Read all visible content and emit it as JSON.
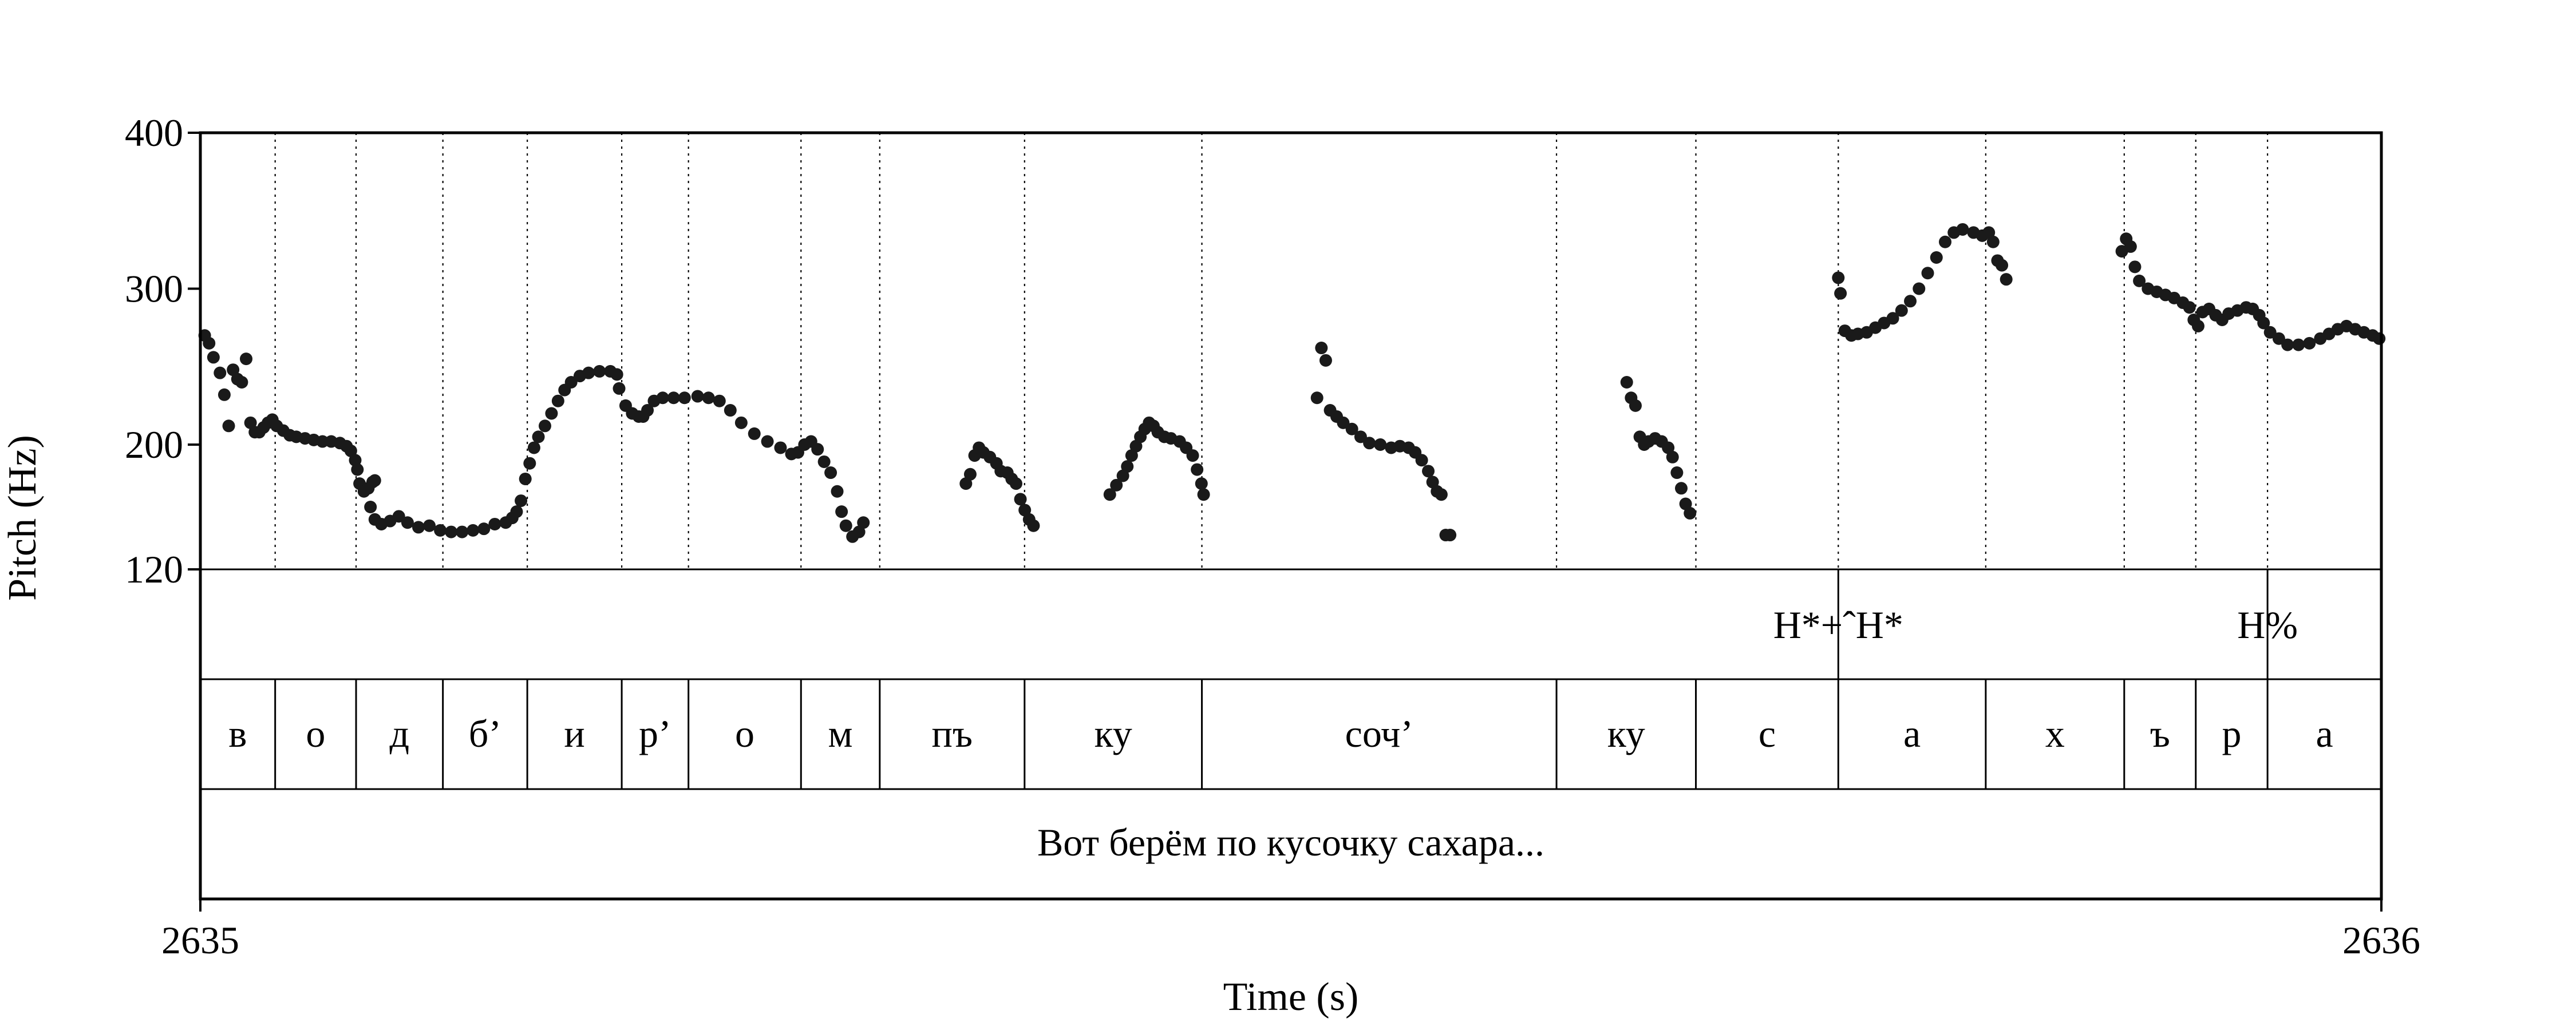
{
  "chart_data": {
    "type": "scatter",
    "xlabel": "Time (s)",
    "ylabel": "Pitch (Hz)",
    "xlim": [
      2635,
      2636
    ],
    "ylim": [
      120,
      400
    ],
    "x_ticks": [
      "2635",
      "2636"
    ],
    "y_ticks": [
      {
        "value": 400,
        "label": "400"
      },
      {
        "value": 300,
        "label": "300"
      },
      {
        "value": 200,
        "label": "200"
      },
      {
        "value": 120,
        "label": "120"
      }
    ],
    "marker_color": "#1a1a1a",
    "boundaries": [
      2635.0343,
      2635.0714,
      2635.1112,
      2635.1499,
      2635.1932,
      2635.2238,
      2635.2754,
      2635.3115,
      2635.3779,
      2635.4592,
      2635.6218,
      2635.6857,
      2635.751,
      2635.8186,
      2635.8821,
      2635.9149,
      2635.9478
    ],
    "tones": [
      {
        "label": "H*+ˆH*",
        "time": 2635.751
      },
      {
        "label": "H%",
        "time": 2635.9478
      }
    ],
    "segments": [
      {
        "label": "в",
        "start": 2635.0,
        "end": 2635.0343
      },
      {
        "label": "о",
        "start": 2635.0343,
        "end": 2635.0714
      },
      {
        "label": "д",
        "start": 2635.0714,
        "end": 2635.1112
      },
      {
        "label": "б’",
        "start": 2635.1112,
        "end": 2635.1499
      },
      {
        "label": "и",
        "start": 2635.1499,
        "end": 2635.1932
      },
      {
        "label": "р’",
        "start": 2635.1932,
        "end": 2635.2238
      },
      {
        "label": "о",
        "start": 2635.2238,
        "end": 2635.2754
      },
      {
        "label": "м",
        "start": 2635.2754,
        "end": 2635.3115
      },
      {
        "label": "пъ",
        "start": 2635.3115,
        "end": 2635.3779
      },
      {
        "label": "ку",
        "start": 2635.3779,
        "end": 2635.4592
      },
      {
        "label": "соч’",
        "start": 2635.4592,
        "end": 2635.6218
      },
      {
        "label": "ку",
        "start": 2635.6218,
        "end": 2635.6857
      },
      {
        "label": "с",
        "start": 2635.6857,
        "end": 2635.751
      },
      {
        "label": "а",
        "start": 2635.751,
        "end": 2635.8186
      },
      {
        "label": "х",
        "start": 2635.8186,
        "end": 2635.8821
      },
      {
        "label": "ъ",
        "start": 2635.8821,
        "end": 2635.9149
      },
      {
        "label": "р",
        "start": 2635.9149,
        "end": 2635.9478
      },
      {
        "label": "а",
        "start": 2635.9478,
        "end": 2636.0
      }
    ],
    "utterance": "Вот берём по кусочку сахара...",
    "series": [
      {
        "points": [
          [
            2635.002,
            270
          ],
          [
            2635.004,
            265
          ],
          [
            2635.006,
            256
          ],
          [
            2635.009,
            246
          ],
          [
            2635.011,
            232
          ],
          [
            2635.013,
            212
          ],
          [
            2635.015,
            248
          ],
          [
            2635.017,
            242
          ],
          [
            2635.019,
            240
          ],
          [
            2635.021,
            255
          ],
          [
            2635.023,
            214
          ],
          [
            2635.025,
            208
          ],
          [
            2635.027,
            208
          ],
          [
            2635.029,
            211
          ],
          [
            2635.031,
            214
          ],
          [
            2635.033,
            216
          ],
          [
            2635.035,
            212
          ],
          [
            2635.038,
            209
          ],
          [
            2635.041,
            206
          ],
          [
            2635.044,
            205
          ],
          [
            2635.048,
            204
          ],
          [
            2635.052,
            203
          ],
          [
            2635.056,
            202
          ],
          [
            2635.06,
            202
          ],
          [
            2635.064,
            201
          ],
          [
            2635.067,
            199
          ],
          [
            2635.069,
            196
          ],
          [
            2635.071,
            190
          ],
          [
            2635.072,
            184
          ],
          [
            2635.073,
            175
          ],
          [
            2635.075,
            170
          ],
          [
            2635.077,
            172
          ],
          [
            2635.079,
            176
          ],
          [
            2635.08,
            177
          ],
          [
            2635.078,
            160
          ],
          [
            2635.08,
            152
          ],
          [
            2635.083,
            149
          ],
          [
            2635.087,
            151
          ],
          [
            2635.091,
            154
          ],
          [
            2635.095,
            150
          ],
          [
            2635.1,
            147
          ],
          [
            2635.105,
            148
          ],
          [
            2635.11,
            145
          ],
          [
            2635.115,
            144
          ],
          [
            2635.12,
            144
          ],
          [
            2635.125,
            145
          ],
          [
            2635.13,
            146
          ],
          [
            2635.135,
            149
          ],
          [
            2635.14,
            150
          ],
          [
            2635.143,
            153
          ],
          [
            2635.145,
            157
          ],
          [
            2635.147,
            164
          ],
          [
            2635.149,
            178
          ],
          [
            2635.151,
            188
          ],
          [
            2635.153,
            198
          ],
          [
            2635.155,
            205
          ],
          [
            2635.158,
            212
          ],
          [
            2635.161,
            220
          ],
          [
            2635.164,
            228
          ],
          [
            2635.167,
            235
          ],
          [
            2635.17,
            240
          ],
          [
            2635.174,
            244
          ],
          [
            2635.178,
            246
          ],
          [
            2635.183,
            247
          ],
          [
            2635.188,
            247
          ],
          [
            2635.191,
            245
          ],
          [
            2635.192,
            236
          ],
          [
            2635.195,
            225
          ],
          [
            2635.198,
            220
          ],
          [
            2635.201,
            218
          ],
          [
            2635.203,
            218
          ],
          [
            2635.205,
            222
          ],
          [
            2635.208,
            228
          ],
          [
            2635.212,
            230
          ],
          [
            2635.217,
            230
          ],
          [
            2635.222,
            230
          ],
          [
            2635.228,
            231
          ],
          [
            2635.233,
            230
          ],
          [
            2635.238,
            228
          ],
          [
            2635.243,
            222
          ],
          [
            2635.248,
            214
          ],
          [
            2635.254,
            207
          ],
          [
            2635.26,
            202
          ],
          [
            2635.266,
            198
          ],
          [
            2635.271,
            194
          ],
          [
            2635.274,
            195
          ],
          [
            2635.277,
            200
          ],
          [
            2635.28,
            202
          ],
          [
            2635.283,
            197
          ],
          [
            2635.286,
            189
          ],
          [
            2635.289,
            182
          ],
          [
            2635.292,
            170
          ],
          [
            2635.294,
            157
          ],
          [
            2635.296,
            148
          ],
          [
            2635.299,
            141
          ],
          [
            2635.302,
            144
          ],
          [
            2635.304,
            150
          ],
          [
            2635.351,
            175
          ],
          [
            2635.353,
            181
          ],
          [
            2635.355,
            193
          ],
          [
            2635.357,
            198
          ],
          [
            2635.359,
            195
          ],
          [
            2635.362,
            192
          ],
          [
            2635.365,
            188
          ],
          [
            2635.367,
            183
          ],
          [
            2635.37,
            182
          ],
          [
            2635.372,
            178
          ],
          [
            2635.374,
            175
          ],
          [
            2635.376,
            165
          ],
          [
            2635.378,
            158
          ],
          [
            2635.38,
            152
          ],
          [
            2635.382,
            148
          ],
          [
            2635.417,
            168
          ],
          [
            2635.42,
            174
          ],
          [
            2635.423,
            180
          ],
          [
            2635.425,
            186
          ],
          [
            2635.427,
            193
          ],
          [
            2635.429,
            199
          ],
          [
            2635.431,
            205
          ],
          [
            2635.433,
            210
          ],
          [
            2635.435,
            214
          ],
          [
            2635.437,
            212
          ],
          [
            2635.439,
            208
          ],
          [
            2635.442,
            205
          ],
          [
            2635.445,
            204
          ],
          [
            2635.449,
            202
          ],
          [
            2635.452,
            198
          ],
          [
            2635.455,
            193
          ],
          [
            2635.457,
            184
          ],
          [
            2635.459,
            175
          ],
          [
            2635.46,
            168
          ],
          [
            2635.512,
            230
          ],
          [
            2635.514,
            262
          ],
          [
            2635.516,
            254
          ],
          [
            2635.518,
            222
          ],
          [
            2635.521,
            218
          ],
          [
            2635.524,
            214
          ],
          [
            2635.528,
            210
          ],
          [
            2635.532,
            205
          ],
          [
            2635.536,
            201
          ],
          [
            2635.541,
            200
          ],
          [
            2635.546,
            198
          ],
          [
            2635.55,
            199
          ],
          [
            2635.554,
            198
          ],
          [
            2635.557,
            195
          ],
          [
            2635.56,
            190
          ],
          [
            2635.563,
            183
          ],
          [
            2635.565,
            176
          ],
          [
            2635.567,
            170
          ],
          [
            2635.569,
            168
          ],
          [
            2635.571,
            142
          ],
          [
            2635.573,
            142
          ],
          [
            2635.654,
            240
          ],
          [
            2635.656,
            230
          ],
          [
            2635.658,
            225
          ],
          [
            2635.66,
            205
          ],
          [
            2635.662,
            200
          ],
          [
            2635.664,
            202
          ],
          [
            2635.667,
            204
          ],
          [
            2635.67,
            202
          ],
          [
            2635.673,
            198
          ],
          [
            2635.675,
            192
          ],
          [
            2635.677,
            182
          ],
          [
            2635.679,
            172
          ],
          [
            2635.681,
            162
          ],
          [
            2635.683,
            156
          ],
          [
            2635.751,
            307
          ],
          [
            2635.752,
            297
          ],
          [
            2635.754,
            273
          ],
          [
            2635.757,
            270
          ],
          [
            2635.76,
            271
          ],
          [
            2635.764,
            272
          ],
          [
            2635.768,
            275
          ],
          [
            2635.772,
            278
          ],
          [
            2635.776,
            281
          ],
          [
            2635.78,
            286
          ],
          [
            2635.784,
            292
          ],
          [
            2635.788,
            300
          ],
          [
            2635.792,
            310
          ],
          [
            2635.796,
            320
          ],
          [
            2635.8,
            330
          ],
          [
            2635.804,
            336
          ],
          [
            2635.808,
            338
          ],
          [
            2635.813,
            336
          ],
          [
            2635.817,
            334
          ],
          [
            2635.82,
            336
          ],
          [
            2635.822,
            330
          ],
          [
            2635.824,
            318
          ],
          [
            2635.826,
            315
          ],
          [
            2635.828,
            306
          ],
          [
            2635.881,
            324
          ],
          [
            2635.883,
            332
          ],
          [
            2635.885,
            327
          ],
          [
            2635.887,
            314
          ],
          [
            2635.889,
            305
          ],
          [
            2635.893,
            300
          ],
          [
            2635.897,
            298
          ],
          [
            2635.901,
            296
          ],
          [
            2635.905,
            294
          ],
          [
            2635.909,
            291
          ],
          [
            2635.912,
            288
          ],
          [
            2635.914,
            280
          ],
          [
            2635.916,
            276
          ],
          [
            2635.918,
            285
          ],
          [
            2635.921,
            287
          ],
          [
            2635.924,
            283
          ],
          [
            2635.927,
            280
          ],
          [
            2635.93,
            284
          ],
          [
            2635.934,
            286
          ],
          [
            2635.938,
            288
          ],
          [
            2635.941,
            287
          ],
          [
            2635.944,
            283
          ],
          [
            2635.946,
            278
          ],
          [
            2635.949,
            272
          ],
          [
            2635.953,
            268
          ],
          [
            2635.957,
            264
          ],
          [
            2635.962,
            264
          ],
          [
            2635.967,
            265
          ],
          [
            2635.972,
            268
          ],
          [
            2635.976,
            271
          ],
          [
            2635.98,
            274
          ],
          [
            2635.984,
            276
          ],
          [
            2635.988,
            274
          ],
          [
            2635.992,
            272
          ],
          [
            2635.996,
            270
          ],
          [
            2635.999,
            268
          ]
        ]
      }
    ]
  }
}
